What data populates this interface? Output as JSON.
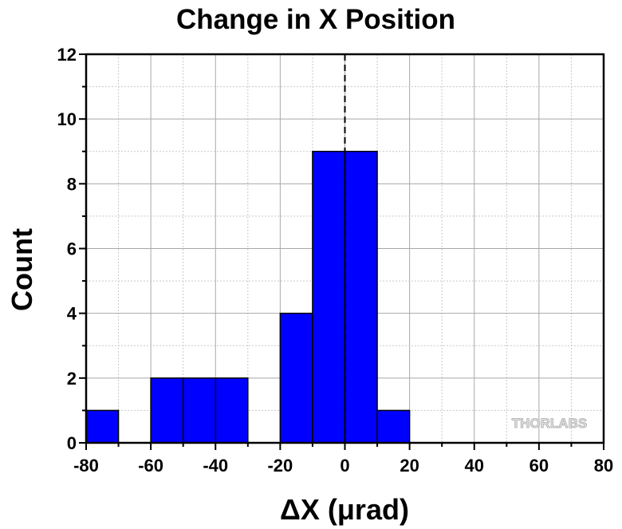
{
  "chart_data": {
    "type": "bar",
    "title": "Change in X Position",
    "xlabel": "ΔX (μrad)",
    "ylabel": "Count",
    "xlim": [
      -80,
      80
    ],
    "ylim": [
      0,
      12
    ],
    "x_ticks": [
      -80,
      -60,
      -40,
      -20,
      0,
      20,
      40,
      60,
      80
    ],
    "y_ticks": [
      0,
      2,
      4,
      6,
      8,
      10,
      12
    ],
    "bin_width": 10,
    "bins": [
      {
        "start": -80,
        "end": -70,
        "count": 1
      },
      {
        "start": -70,
        "end": -60,
        "count": 0
      },
      {
        "start": -60,
        "end": -50,
        "count": 2
      },
      {
        "start": -50,
        "end": -40,
        "count": 2
      },
      {
        "start": -40,
        "end": -30,
        "count": 2
      },
      {
        "start": -30,
        "end": -20,
        "count": 0
      },
      {
        "start": -20,
        "end": -10,
        "count": 4
      },
      {
        "start": -10,
        "end": 0,
        "count": 9
      },
      {
        "start": 0,
        "end": 10,
        "count": 9
      },
      {
        "start": 10,
        "end": 20,
        "count": 1
      }
    ],
    "bar_color": "#0000ff",
    "grid": true,
    "reference_line": {
      "x": 0,
      "style": "dashed"
    }
  },
  "watermark": "THORLABS"
}
